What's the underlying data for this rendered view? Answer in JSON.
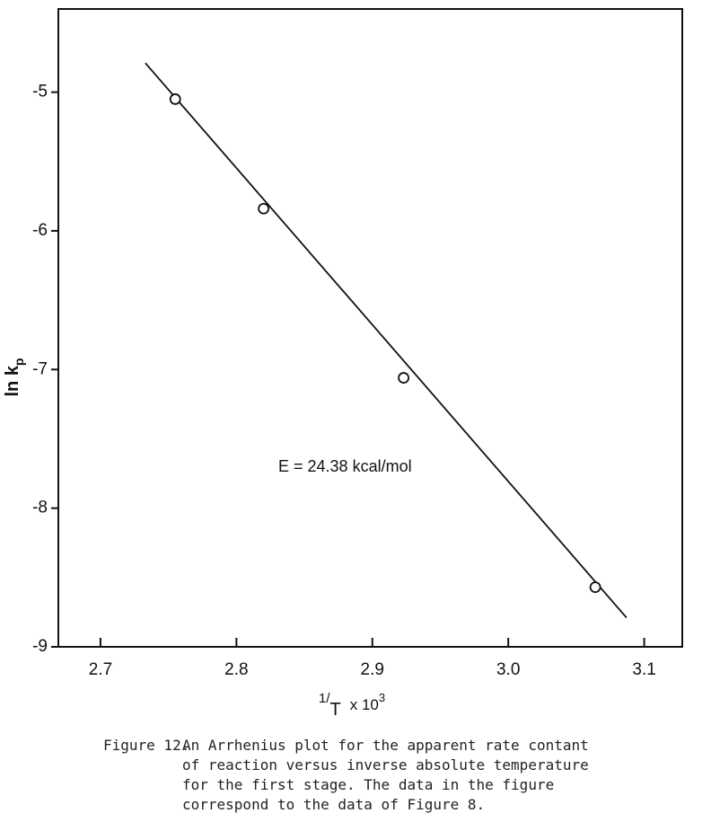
{
  "chart_data": {
    "type": "scatter",
    "xlabel": {
      "num": "1",
      "den": "T",
      "mult": "x 10",
      "exp": "3"
    },
    "ylabel": {
      "main": "ln k",
      "sub": "p"
    },
    "annotation": "E = 24.38 kcal/mol",
    "x": [
      2.755,
      2.82,
      2.923,
      3.064
    ],
    "values": [
      -5.05,
      -5.84,
      -7.06,
      -8.57
    ],
    "fit": {
      "x": [
        2.733,
        3.087
      ],
      "values": [
        -4.79,
        -8.79
      ]
    },
    "color": "#111111",
    "xlim": [
      2.669,
      3.128
    ],
    "ylim": [
      -9,
      -4.4
    ],
    "xticks": [
      2.7,
      2.8,
      2.9,
      {
        "value": 3.0,
        "label": "3.0"
      },
      3.1
    ],
    "yticks": [
      -5,
      -6,
      -7,
      -8,
      -9
    ],
    "caption": {
      "label": "Figure 12.",
      "lines": [
        "An Arrhenius plot for the apparent rate contant",
        "of reaction versus inverse absolute temperature",
        "for the first stage.  The data in the figure",
        "correspond to the data of Figure 8."
      ]
    }
  }
}
